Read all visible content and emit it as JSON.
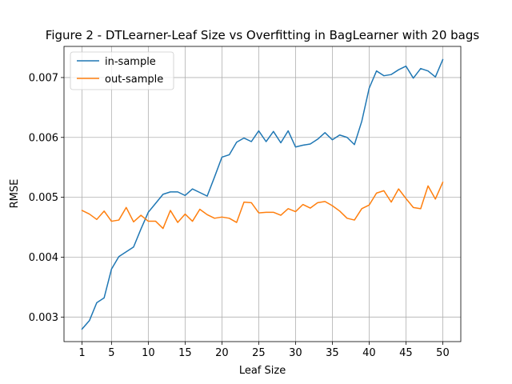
{
  "chart_data": {
    "type": "line",
    "title": "Figure 2 - DTLearner-Leaf Size vs Overfitting in BagLearner with 20 bags",
    "xlabel": "Leaf Size",
    "ylabel": "RMSE",
    "xlim": [
      -1.45,
      52.45
    ],
    "ylim": [
      0.00259,
      0.00752
    ],
    "xticks": [
      1,
      5,
      10,
      15,
      20,
      25,
      30,
      35,
      40,
      45,
      50
    ],
    "xtick_labels": [
      "1",
      "5",
      "10",
      "15",
      "20",
      "25",
      "30",
      "35",
      "40",
      "45",
      "50"
    ],
    "yticks": [
      0.003,
      0.004,
      0.005,
      0.006,
      0.007
    ],
    "ytick_labels": [
      "0.003",
      "0.004",
      "0.005",
      "0.006",
      "0.007"
    ],
    "grid": true,
    "legend_position": "top-left",
    "x": [
      1,
      2,
      3,
      4,
      5,
      6,
      7,
      8,
      9,
      10,
      11,
      12,
      13,
      14,
      15,
      16,
      17,
      18,
      19,
      20,
      21,
      22,
      23,
      24,
      25,
      26,
      27,
      28,
      29,
      30,
      31,
      32,
      33,
      34,
      35,
      36,
      37,
      38,
      39,
      40,
      41,
      42,
      43,
      44,
      45,
      46,
      47,
      48,
      49,
      50
    ],
    "series": [
      {
        "name": "in-sample",
        "color": "#1f77b4",
        "values": [
          0.0028,
          0.00294,
          0.00324,
          0.00332,
          0.0038,
          0.00401,
          0.00409,
          0.00417,
          0.00447,
          0.00475,
          0.0049,
          0.00505,
          0.00509,
          0.00509,
          0.00503,
          0.00514,
          0.00508,
          0.00502,
          0.00534,
          0.00567,
          0.00571,
          0.00592,
          0.00599,
          0.00593,
          0.00611,
          0.00593,
          0.0061,
          0.00591,
          0.00611,
          0.00584,
          0.00587,
          0.00589,
          0.00597,
          0.00608,
          0.00596,
          0.00604,
          0.006,
          0.00588,
          0.00627,
          0.00682,
          0.00711,
          0.00703,
          0.00705,
          0.00713,
          0.00719,
          0.00699,
          0.00715,
          0.00711,
          0.00701,
          0.0073
        ]
      },
      {
        "name": "out-sample",
        "color": "#ff7f0e",
        "values": [
          0.00478,
          0.00472,
          0.00463,
          0.00477,
          0.0046,
          0.00462,
          0.00483,
          0.00459,
          0.0047,
          0.0046,
          0.0046,
          0.00448,
          0.00478,
          0.00458,
          0.00472,
          0.0046,
          0.0048,
          0.00471,
          0.00465,
          0.00467,
          0.00465,
          0.00458,
          0.00492,
          0.00491,
          0.00474,
          0.00475,
          0.00475,
          0.0047,
          0.00481,
          0.00476,
          0.00488,
          0.00482,
          0.00491,
          0.00493,
          0.00486,
          0.00477,
          0.00465,
          0.00462,
          0.00481,
          0.00487,
          0.00507,
          0.00511,
          0.00492,
          0.00514,
          0.00498,
          0.00483,
          0.00481,
          0.00519,
          0.00497,
          0.00525
        ]
      }
    ]
  }
}
